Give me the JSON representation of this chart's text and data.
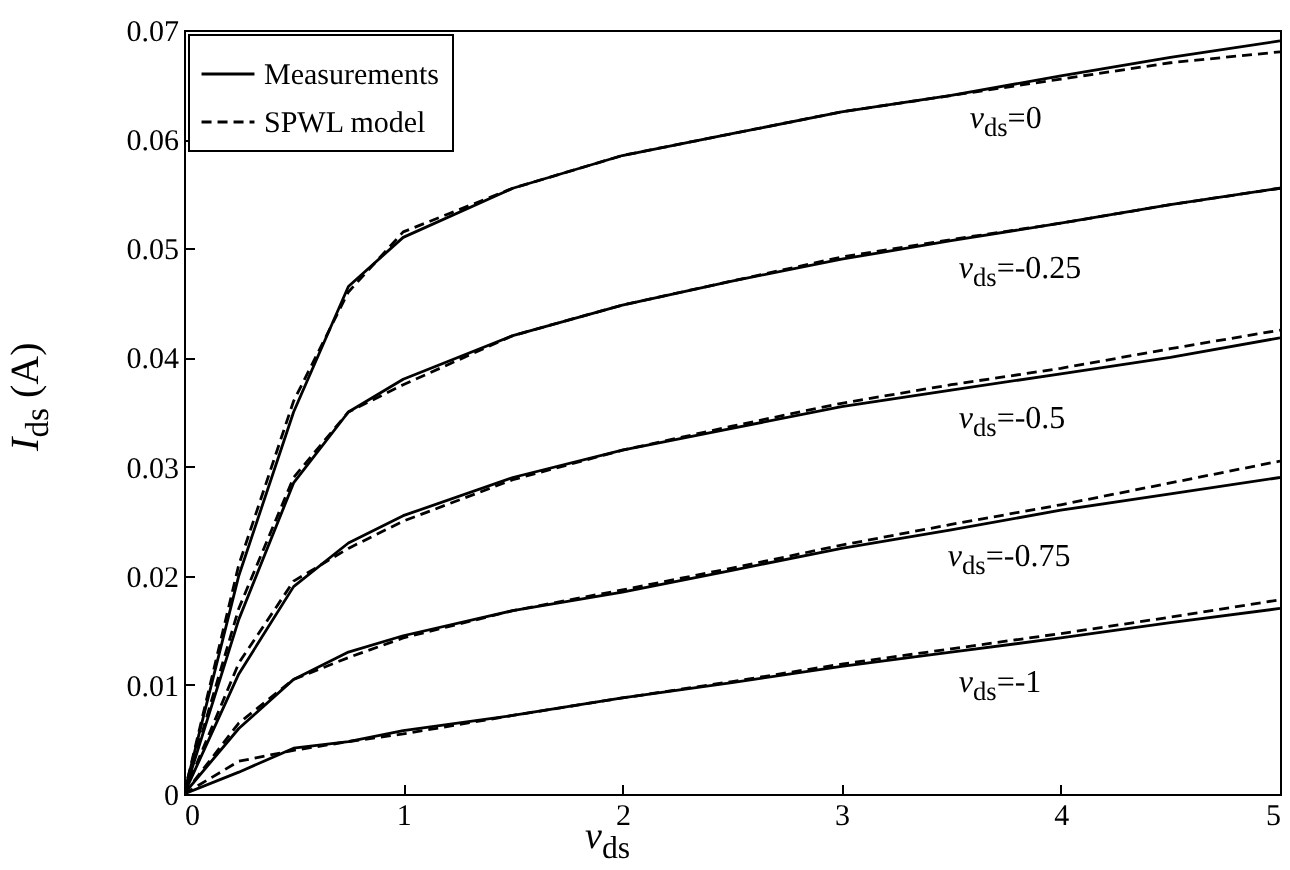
{
  "chart_data": {
    "type": "line",
    "xlabel": "v$_{ds}$",
    "ylabel": "I$_{ds}$ (A)",
    "xlim": [
      0,
      5
    ],
    "ylim": [
      0,
      0.07
    ],
    "xticks": [
      0,
      1,
      2,
      3,
      4,
      5
    ],
    "yticks": [
      0,
      0.01,
      0.02,
      0.03,
      0.04,
      0.05,
      0.06,
      0.07
    ],
    "grid": false,
    "legend": "top left",
    "x": [
      0,
      0.25,
      0.5,
      0.75,
      1,
      1.5,
      2,
      2.5,
      3,
      3.5,
      4,
      4.5,
      5
    ],
    "series": [
      {
        "name": "Measurements",
        "color": "#000000",
        "line_style": "solid",
        "values": [
          0,
          0.02,
          0.035,
          0.0465,
          0.051,
          0.0555,
          0.0585,
          0.0605,
          0.0625,
          0.064,
          0.0658,
          0.0675,
          0.069
        ]
      },
      {
        "name": "SPWL model",
        "color": "#000000",
        "line_style": "dashed",
        "values": [
          0,
          0.021,
          0.036,
          0.046,
          0.0515,
          0.0555,
          0.0585,
          0.0605,
          0.0625,
          0.064,
          0.0655,
          0.067,
          0.068
        ]
      },
      {
        "color": "#000000",
        "line_style": "solid",
        "values": [
          0,
          0.016,
          0.0285,
          0.035,
          0.038,
          0.042,
          0.0448,
          0.047,
          0.049,
          0.0507,
          0.0523,
          0.054,
          0.0555
        ]
      },
      {
        "color": "#000000",
        "line_style": "dashed",
        "values": [
          0,
          0.017,
          0.029,
          0.035,
          0.0375,
          0.042,
          0.0448,
          0.047,
          0.0492,
          0.0508,
          0.0523,
          0.054,
          0.0555
        ]
      },
      {
        "color": "#000000",
        "line_style": "solid",
        "values": [
          0,
          0.011,
          0.019,
          0.023,
          0.0255,
          0.029,
          0.0315,
          0.0335,
          0.0355,
          0.037,
          0.0385,
          0.04,
          0.0418
        ]
      },
      {
        "color": "#000000",
        "line_style": "dashed",
        "values": [
          0,
          0.012,
          0.0195,
          0.0225,
          0.025,
          0.0288,
          0.0315,
          0.0337,
          0.0358,
          0.0375,
          0.039,
          0.0408,
          0.0425
        ]
      },
      {
        "color": "#000000",
        "line_style": "solid",
        "values": [
          0,
          0.006,
          0.0105,
          0.013,
          0.0145,
          0.0168,
          0.0185,
          0.0205,
          0.0225,
          0.0242,
          0.026,
          0.0275,
          0.029
        ]
      },
      {
        "color": "#000000",
        "line_style": "dashed",
        "values": [
          0,
          0.0065,
          0.0105,
          0.0125,
          0.0143,
          0.0168,
          0.0187,
          0.0207,
          0.0228,
          0.0247,
          0.0265,
          0.0285,
          0.0305
        ]
      },
      {
        "color": "#000000",
        "line_style": "solid",
        "values": [
          0,
          0.002,
          0.0042,
          0.0048,
          0.0058,
          0.0072,
          0.0088,
          0.0102,
          0.0117,
          0.013,
          0.0143,
          0.0157,
          0.017
        ]
      },
      {
        "color": "#000000",
        "line_style": "dashed",
        "values": [
          0,
          0.003,
          0.004,
          0.0048,
          0.0055,
          0.0072,
          0.0088,
          0.0103,
          0.0119,
          0.0133,
          0.0147,
          0.0162,
          0.0178
        ]
      }
    ],
    "annotations": [
      {
        "text": "v$_{ds}$=0",
        "x": 4.15,
        "y": 0.0663
      },
      {
        "text": "v$_{ds}$=-0.25",
        "x": 4.1,
        "y": 0.0526
      },
      {
        "text": "v$_{ds}$=-0.5",
        "x": 4.1,
        "y": 0.0388
      },
      {
        "text": "v$_{ds}$=-0.75",
        "x": 4.05,
        "y": 0.0262
      },
      {
        "text": "v$_{ds}$=-1",
        "x": 4.1,
        "y": 0.0146
      }
    ]
  }
}
